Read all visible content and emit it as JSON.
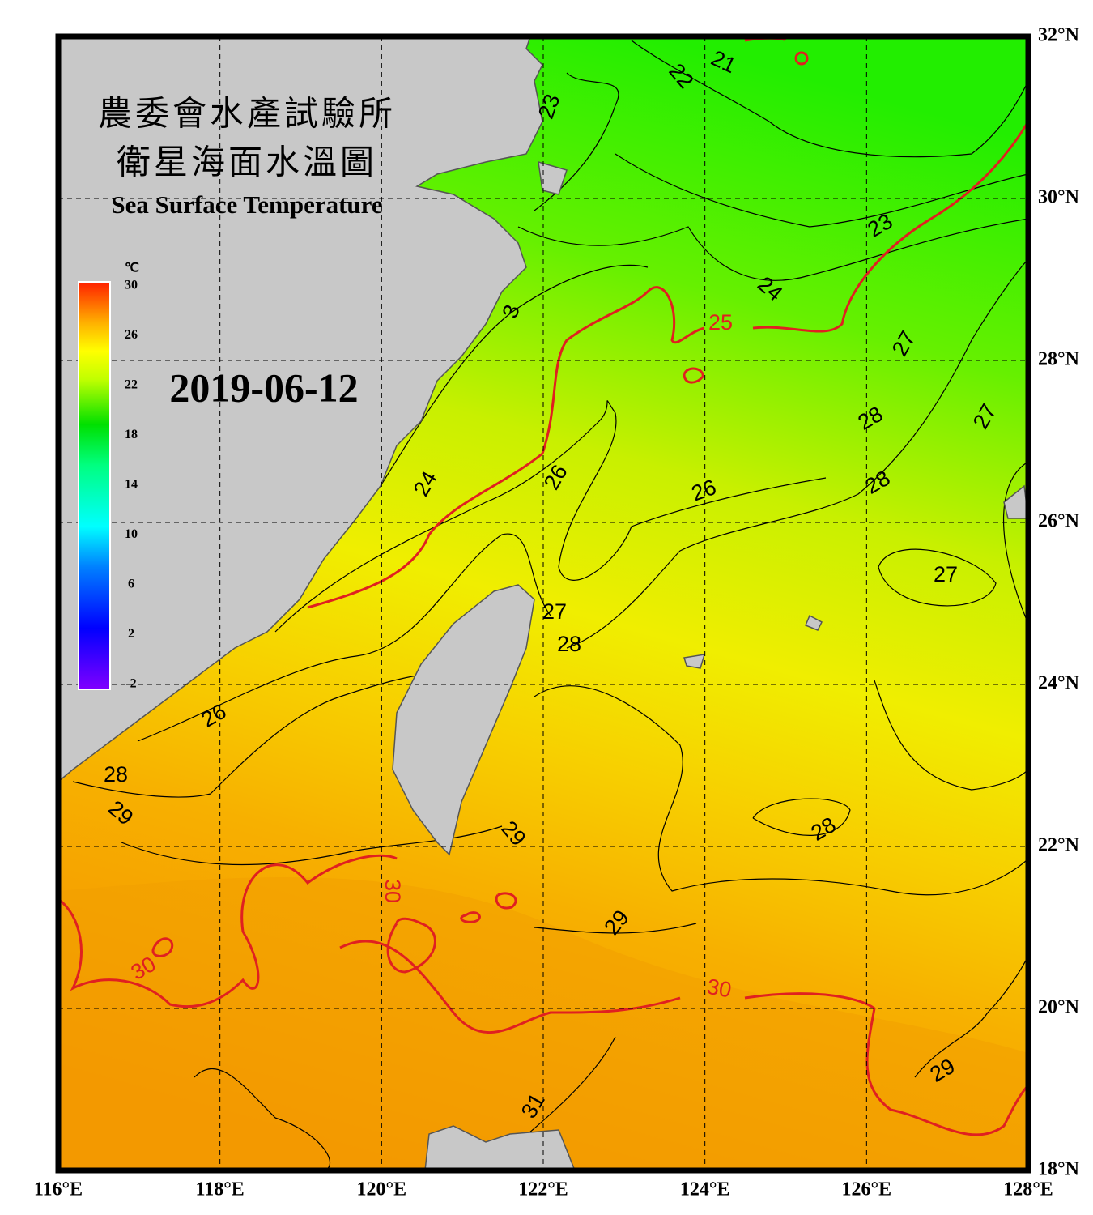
{
  "map": {
    "title_lines": [
      "農委會水產試驗所",
      "衛星海面水溫圖"
    ],
    "subtitle": "Sea Surface Temperature",
    "date": "2019-06-12",
    "lon_ticks": [
      {
        "value": 116,
        "label": "116°E"
      },
      {
        "value": 118,
        "label": "118°E"
      },
      {
        "value": 120,
        "label": "120°E"
      },
      {
        "value": 122,
        "label": "122°E"
      },
      {
        "value": 124,
        "label": "124°E"
      },
      {
        "value": 126,
        "label": "126°E"
      },
      {
        "value": 128,
        "label": "128°E"
      }
    ],
    "lat_ticks": [
      {
        "value": 18,
        "label": "18°N"
      },
      {
        "value": 20,
        "label": "20°N"
      },
      {
        "value": 22,
        "label": "22°N"
      },
      {
        "value": 24,
        "label": "24°N"
      },
      {
        "value": 26,
        "label": "26°N"
      },
      {
        "value": 28,
        "label": "28°N"
      },
      {
        "value": 30,
        "label": "30°N"
      },
      {
        "value": 32,
        "label": "32°N"
      }
    ],
    "lonlim": [
      116,
      128
    ],
    "latlim": [
      18,
      32
    ],
    "colorbar": {
      "unit": "℃",
      "lim": [
        -2,
        30
      ],
      "ticks": [
        -2,
        2,
        6,
        10,
        14,
        18,
        22,
        26,
        30
      ]
    },
    "isotherm_labels": [
      21,
      22,
      23,
      23,
      3,
      24,
      27,
      28,
      27,
      24,
      26,
      26,
      28,
      27,
      27,
      28,
      26,
      28,
      29,
      28,
      29,
      29,
      29,
      31
    ],
    "major_isotherm_labels": [
      25,
      30,
      30,
      30
    ]
  }
}
